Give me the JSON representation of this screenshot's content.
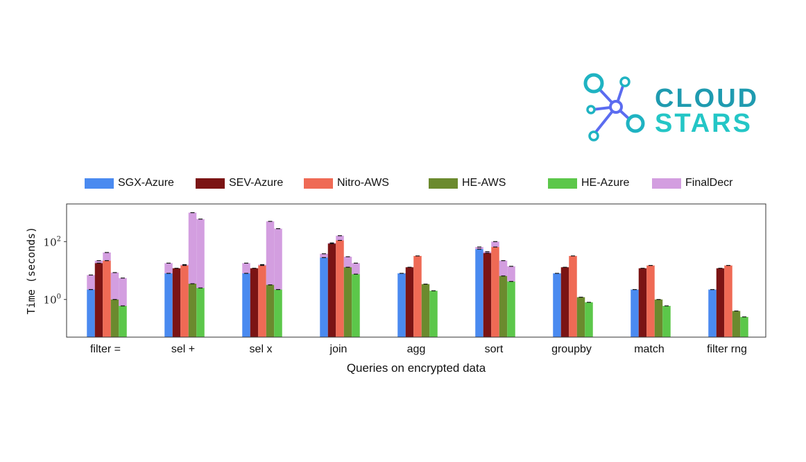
{
  "logo": {
    "line1": "CLOUD",
    "line2": "STARS",
    "icon": "network-star-icon",
    "colors": {
      "text_top": "#1f9bb0",
      "text_bottom": "#24c6c6",
      "icon_blue": "#5b6cf0",
      "icon_teal": "#1fb3c2"
    }
  },
  "chart_data": {
    "type": "bar",
    "xlabel": "Queries on encrypted data",
    "ylabel": "Time (seconds)",
    "yscale": "log",
    "ylim": [
      0.05,
      2000
    ],
    "yticks": [
      {
        "value": 1,
        "label": "10^0"
      },
      {
        "value": 100,
        "label": "10^2"
      }
    ],
    "legend_position": "top",
    "grid": false,
    "categories": [
      "filter =",
      "sel +",
      "sel x",
      "join",
      "agg",
      "sort",
      "groupby",
      "match",
      "filter rng"
    ],
    "series": [
      {
        "name": "SGX-Azure",
        "color": "#4a8af0",
        "values": [
          2.2,
          8,
          8,
          28,
          8,
          55,
          8,
          2.2,
          2.2
        ],
        "total": [
          7,
          18,
          18,
          38,
          null,
          65,
          null,
          null,
          null
        ]
      },
      {
        "name": "SEV-Azure",
        "color": "#7b1414",
        "values": [
          18,
          12,
          12,
          85,
          13,
          40,
          13,
          12,
          12
        ],
        "total": [
          22,
          null,
          null,
          90,
          null,
          45,
          null,
          null,
          null
        ]
      },
      {
        "name": "Nitro-AWS",
        "color": "#ef6a55",
        "values": [
          22,
          15,
          15,
          110,
          32,
          65,
          32,
          15,
          15
        ],
        "total": [
          42,
          16,
          16,
          160,
          null,
          100,
          null,
          null,
          null
        ]
      },
      {
        "name": "HE-AWS",
        "color": "#6b8a2e",
        "values": [
          1.0,
          3.5,
          3.2,
          13,
          3.4,
          6.5,
          1.2,
          1.0,
          0.4
        ],
        "total": [
          8.5,
          1000,
          500,
          30,
          null,
          22,
          null,
          null,
          null
        ]
      },
      {
        "name": "HE-Azure",
        "color": "#5cc74a",
        "values": [
          0.6,
          2.5,
          2.2,
          7.5,
          2.0,
          4.2,
          0.8,
          0.6,
          0.25
        ],
        "total": [
          5.5,
          600,
          280,
          18,
          null,
          14,
          null,
          null,
          null
        ]
      }
    ],
    "stacked_component": {
      "name": "FinalDecr",
      "color": "#d39ee0"
    }
  }
}
